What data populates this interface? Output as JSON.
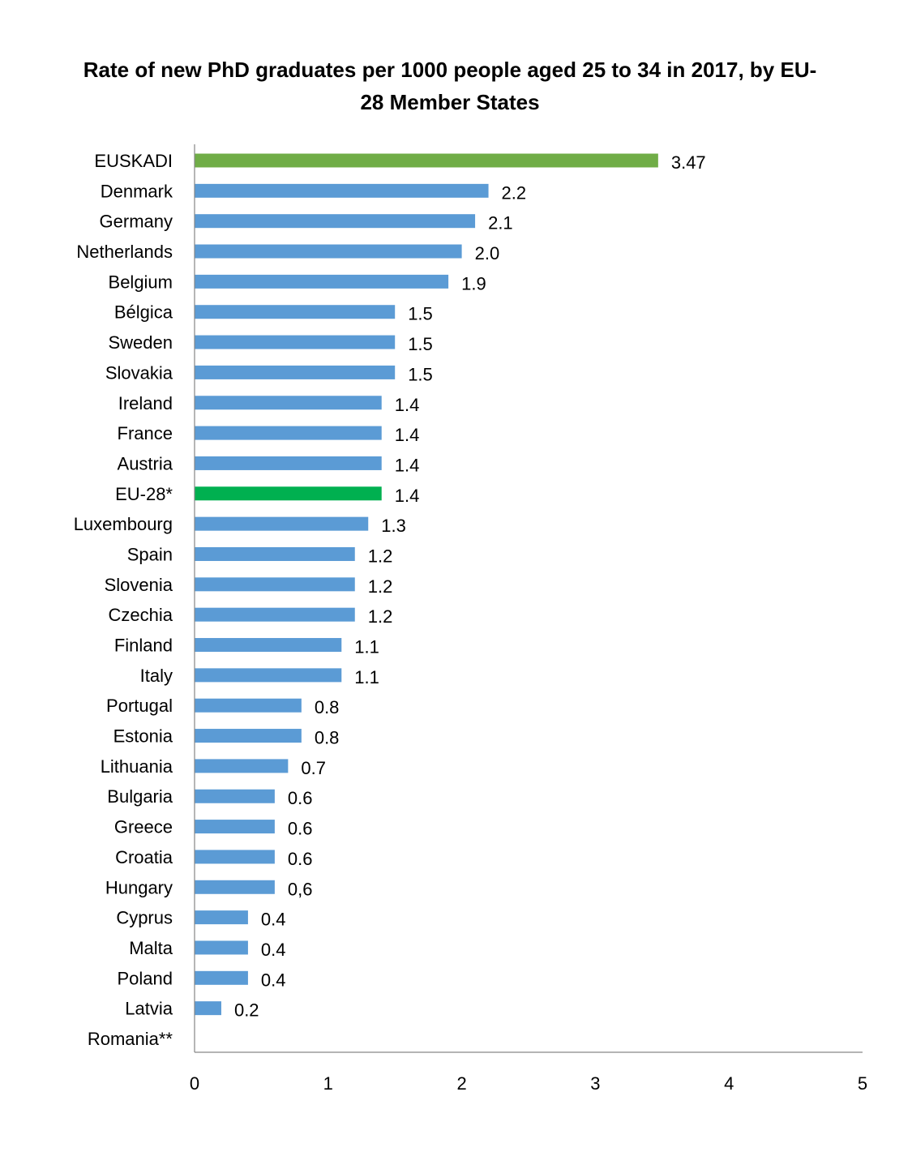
{
  "chart_data": {
    "type": "bar",
    "orientation": "horizontal",
    "title": "Rate of new PhD graduates per 1000 people aged 25 to 34 in 2017, by EU-28 Member States",
    "xlabel": "",
    "ylabel": "",
    "xlim": [
      0,
      5
    ],
    "xticks": [
      "0",
      "1",
      "2",
      "3",
      "4",
      "5"
    ],
    "grid": false,
    "legend": "none",
    "colors": {
      "default": "#5B9BD5",
      "EUSKADI": "#70AD47",
      "EU-28*": "#00B050"
    },
    "categories": [
      "EUSKADI",
      "Denmark",
      "Germany",
      "Netherlands",
      "Belgium",
      "Bélgica",
      "Sweden",
      "Slovakia",
      "Ireland",
      "France",
      "Austria",
      "EU-28*",
      "Luxembourg",
      "Spain",
      "Slovenia",
      "Czechia",
      "Finland",
      "Italy",
      "Portugal",
      "Estonia",
      "Lithuania",
      "Bulgaria",
      "Greece",
      "Croatia",
      "Hungary",
      "Cyprus",
      "Malta",
      "Poland",
      "Latvia",
      "Romania**"
    ],
    "values": [
      3.47,
      2.2,
      2.1,
      2.0,
      1.9,
      1.5,
      1.5,
      1.5,
      1.4,
      1.4,
      1.4,
      1.4,
      1.3,
      1.2,
      1.2,
      1.2,
      1.1,
      1.1,
      0.8,
      0.8,
      0.7,
      0.6,
      0.6,
      0.6,
      0.6,
      0.4,
      0.4,
      0.4,
      0.2,
      null
    ],
    "data_labels": [
      "3.47",
      "2.2",
      "2.1",
      "2.0",
      "1.9",
      "1.5",
      "1.5",
      "1.5",
      "1.4",
      "1.4",
      "1.4",
      "1.4",
      "1.3",
      "1.2",
      "1.2",
      "1.2",
      "1.1",
      "1.1",
      "0.8",
      "0.8",
      "0.7",
      "0.6",
      "0.6",
      "0.6",
      "0,6",
      "0.4",
      "0.4",
      "0.4",
      "0.2",
      ""
    ]
  }
}
